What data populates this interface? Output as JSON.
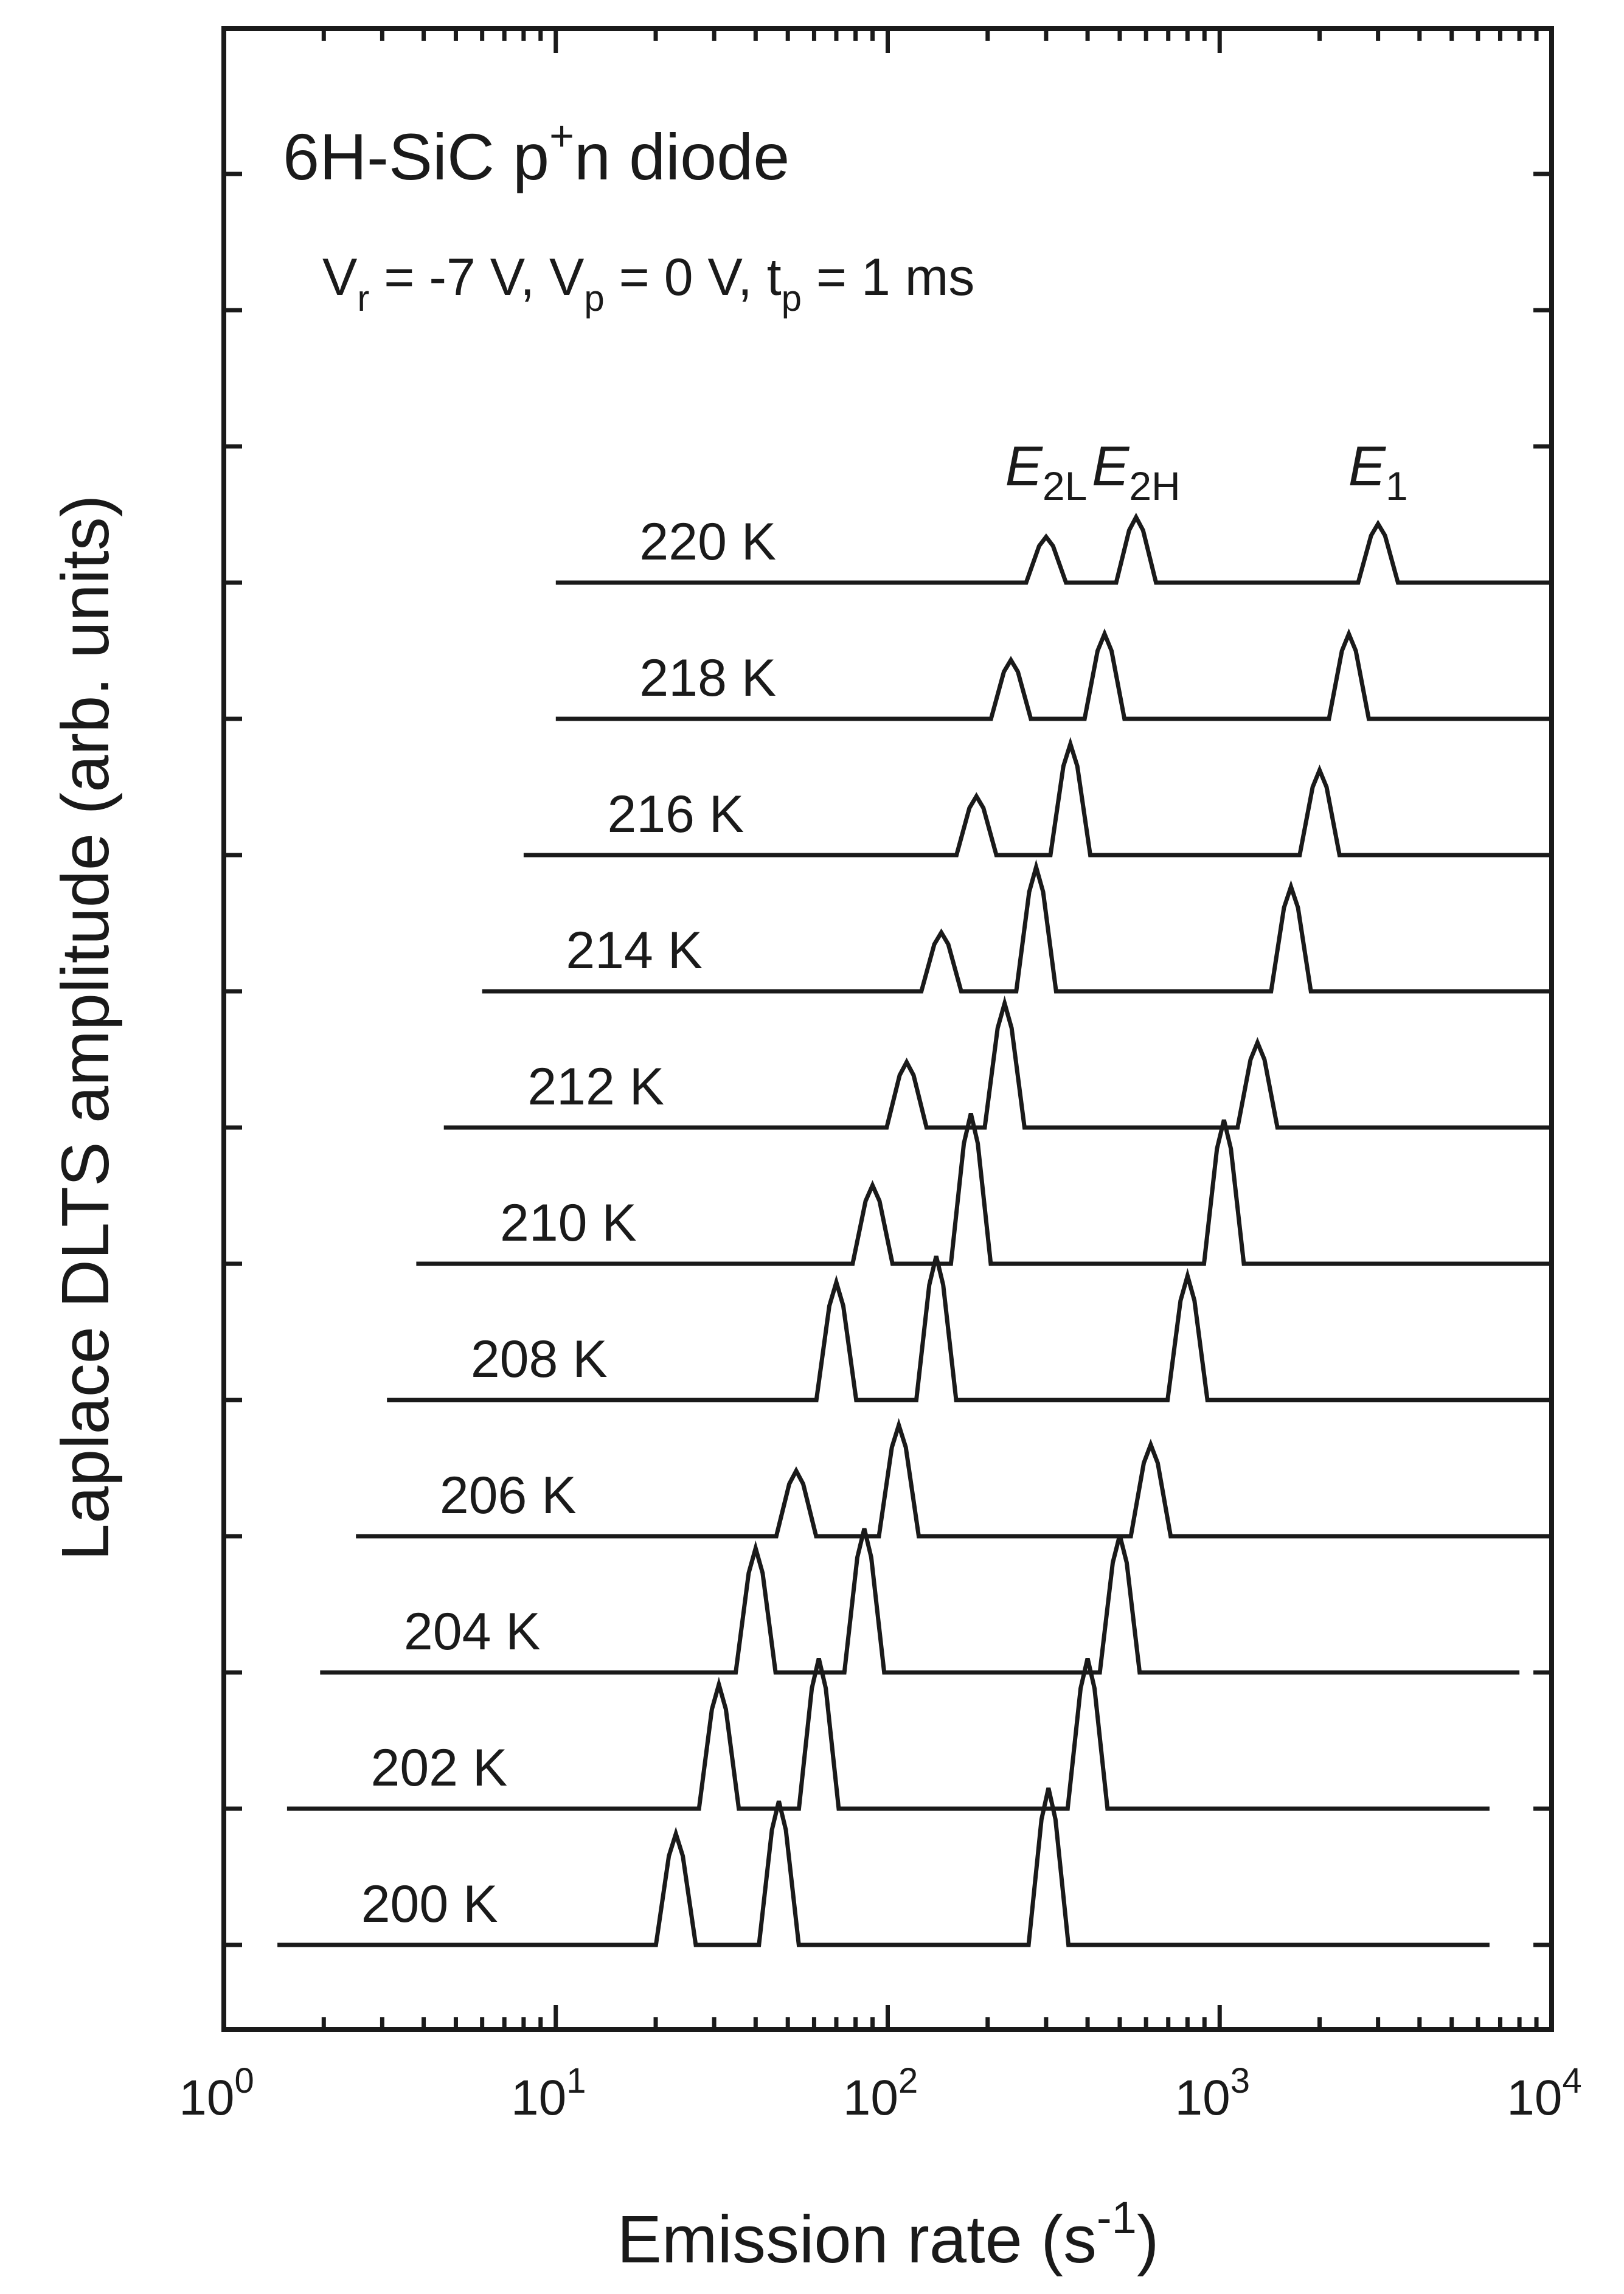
{
  "chart_data": {
    "type": "line",
    "xlabel": "Emission rate (s",
    "xlabel_sup": "-1",
    "xlabel_tail": ")",
    "ylabel": "Laplace DLTS amplitude (arb. units)",
    "x_scale": "log",
    "xlim": [
      1,
      10000
    ],
    "x_ticks": [
      {
        "value": 1,
        "base": "10",
        "exp": "0"
      },
      {
        "value": 10,
        "base": "10",
        "exp": "1"
      },
      {
        "value": 100,
        "base": "10",
        "exp": "2"
      },
      {
        "value": 1000,
        "base": "10",
        "exp": "3"
      },
      {
        "value": 10000,
        "base": "10",
        "exp": "4"
      }
    ],
    "grid": false,
    "annotation_title": {
      "main": "6H-SiC p",
      "sup": "+",
      "tail": "n diode"
    },
    "annotation_conditions": [
      {
        "t": "V"
      },
      {
        "t": "r",
        "role": "sub"
      },
      {
        "t": " = -7 V, V"
      },
      {
        "t": "p",
        "role": "sub"
      },
      {
        "t": " = 0 V, t"
      },
      {
        "t": "p",
        "role": "sub"
      },
      {
        "t": " = 1 ms"
      }
    ],
    "peak_labels": [
      {
        "name": "E",
        "sub": "2L",
        "x": 300
      },
      {
        "name": "E",
        "sub": "2H",
        "x": 560
      },
      {
        "name": "E",
        "sub": "1",
        "x": 3000
      }
    ],
    "series": [
      {
        "name": "200 K",
        "x_start": 1.45,
        "x_end": 6500,
        "peaks": [
          {
            "x": 23,
            "h": 0.85
          },
          {
            "x": 47,
            "h": 1.1
          },
          {
            "x": 305,
            "h": 1.2
          }
        ]
      },
      {
        "name": "202 K",
        "x_start": 1.55,
        "x_end": 6500,
        "peaks": [
          {
            "x": 31,
            "h": 0.95
          },
          {
            "x": 62,
            "h": 1.15
          },
          {
            "x": 400,
            "h": 1.15
          }
        ]
      },
      {
        "name": "204 K",
        "x_start": 1.95,
        "x_end": 8000,
        "peaks": [
          {
            "x": 40,
            "h": 0.95
          },
          {
            "x": 85,
            "h": 1.1
          },
          {
            "x": 500,
            "h": 1.05
          }
        ]
      },
      {
        "name": "206 K",
        "x_start": 2.5,
        "x_end": 10000,
        "peaks": [
          {
            "x": 53,
            "h": 0.5
          },
          {
            "x": 108,
            "h": 0.85
          },
          {
            "x": 620,
            "h": 0.7
          }
        ]
      },
      {
        "name": "208 K",
        "x_start": 3.1,
        "x_end": 10000,
        "peaks": [
          {
            "x": 70,
            "h": 0.9
          },
          {
            "x": 140,
            "h": 1.1
          },
          {
            "x": 800,
            "h": 0.95
          }
        ]
      },
      {
        "name": "210 K",
        "x_start": 3.8,
        "x_end": 10000,
        "peaks": [
          {
            "x": 90,
            "h": 0.6
          },
          {
            "x": 178,
            "h": 1.15
          },
          {
            "x": 1030,
            "h": 1.1
          }
        ]
      },
      {
        "name": "212 K",
        "x_start": 4.6,
        "x_end": 10000,
        "peaks": [
          {
            "x": 114,
            "h": 0.5
          },
          {
            "x": 225,
            "h": 0.95
          },
          {
            "x": 1300,
            "h": 0.65
          }
        ]
      },
      {
        "name": "214 K",
        "x_start": 6.0,
        "x_end": 10000,
        "peaks": [
          {
            "x": 145,
            "h": 0.45
          },
          {
            "x": 280,
            "h": 0.95
          },
          {
            "x": 1640,
            "h": 0.8
          }
        ]
      },
      {
        "name": "216 K",
        "x_start": 8.0,
        "x_end": 10000,
        "peaks": [
          {
            "x": 185,
            "h": 0.45
          },
          {
            "x": 355,
            "h": 0.85
          },
          {
            "x": 2000,
            "h": 0.65
          }
        ]
      },
      {
        "name": "218 K",
        "x_start": 10.0,
        "x_end": 10000,
        "peaks": [
          {
            "x": 235,
            "h": 0.45
          },
          {
            "x": 450,
            "h": 0.65
          },
          {
            "x": 2450,
            "h": 0.65
          }
        ]
      },
      {
        "name": "220 K",
        "x_start": 10.0,
        "x_end": 10000,
        "peaks": [
          {
            "x": 300,
            "h": 0.35
          },
          {
            "x": 560,
            "h": 0.5
          },
          {
            "x": 3000,
            "h": 0.45
          }
        ]
      }
    ]
  }
}
